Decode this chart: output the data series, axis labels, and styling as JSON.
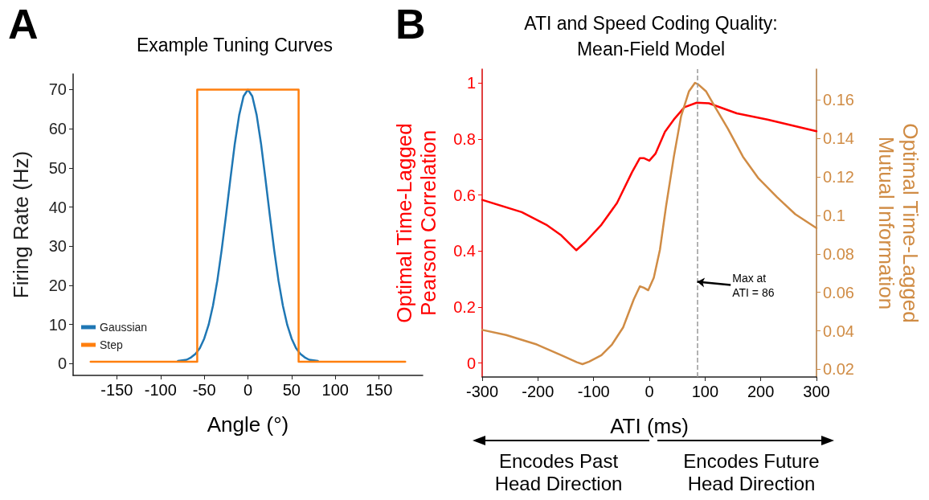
{
  "chart_data": [
    {
      "type": "line",
      "title": "Example Tuning Curves",
      "xlabel": "Angle (°)",
      "ylabel": "Firing Rate (Hz)",
      "xlim": [
        -200,
        200
      ],
      "xticks": [
        -150,
        -100,
        -50,
        0,
        50,
        100,
        150
      ],
      "ylim": [
        -3,
        74
      ],
      "yticks": [
        0,
        10,
        20,
        30,
        40,
        50,
        60,
        70
      ],
      "legend": "bottom left",
      "annotations": [
        "A"
      ],
      "series": [
        {
          "name": "Gaussian",
          "color": "#1f77b4",
          "x": [
            -80,
            -70,
            -65,
            -60,
            -55,
            -50,
            -45,
            -40,
            -35,
            -30,
            -25,
            -20,
            -15,
            -10,
            -5,
            0,
            5,
            10,
            15,
            20,
            25,
            30,
            35,
            40,
            45,
            50,
            55,
            60,
            65,
            70,
            80
          ],
          "values": [
            0.7,
            1,
            1.6,
            2.5,
            4.0,
            6.4,
            9.9,
            14.8,
            21.2,
            29.1,
            38,
            47.3,
            56.2,
            63.5,
            68.3,
            70,
            68.3,
            63.5,
            56.2,
            47.3,
            38,
            29.1,
            21.2,
            14.8,
            9.9,
            6.4,
            4.0,
            2.5,
            1.6,
            1,
            0.7
          ]
        },
        {
          "name": "Step",
          "color": "#ff7f0e",
          "x": [
            -180,
            -58,
            -58,
            58,
            58,
            180
          ],
          "values": [
            0.5,
            0.5,
            70,
            70,
            0.5,
            0.5
          ]
        }
      ]
    },
    {
      "type": "line",
      "title": "ATI and Speed Coding Quality:\nMean-Field Model",
      "xlabel": "ATI (ms)",
      "ylabel": "Optimal Time-Lagged\nPearson Correlation",
      "y2label": "Optimal Time-Lagged\nMutual Information",
      "xlim": [
        -300,
        300
      ],
      "xticks": [
        -300,
        -200,
        -100,
        0,
        100,
        200,
        300
      ],
      "ylim": [
        -0.05,
        1.05
      ],
      "yticks": [
        0,
        0.2,
        0.4,
        0.6,
        0.8,
        1
      ],
      "y2lim": [
        0.016,
        0.176
      ],
      "y2ticks": [
        0.02,
        0.04,
        0.06,
        0.08,
        0.1,
        0.12,
        0.14,
        0.16
      ],
      "ref_lines": [
        {
          "axis": "x",
          "value": 86,
          "color": "#999999",
          "line_style": "dashed"
        }
      ],
      "annotations": [
        "B",
        {
          "text": "Max at\nATI = 86",
          "x": 86,
          "y": 0.29
        },
        "Encodes Past\nHead Direction",
        "Encodes Future\nHead Direction"
      ],
      "series": [
        {
          "color": "#ff0000",
          "x": [
            -300,
            -229,
            -185,
            -158,
            -131,
            -114,
            -86,
            -58,
            -31,
            -17,
            -10,
            0,
            11,
            28,
            44,
            63,
            85,
            107,
            157,
            212,
            300
          ],
          "values": [
            0.583,
            0.539,
            0.494,
            0.456,
            0.403,
            0.434,
            0.494,
            0.572,
            0.682,
            0.732,
            0.732,
            0.723,
            0.748,
            0.826,
            0.87,
            0.914,
            0.93,
            0.928,
            0.892,
            0.87,
            0.828
          ]
        },
        {
          "color": "#d08c45",
          "axis": "y2",
          "x": [
            -300,
            -257,
            -202,
            -158,
            -130,
            -120,
            -108,
            -86,
            -67,
            -47,
            -28,
            -17,
            -10,
            -2,
            8,
            19,
            30,
            44,
            57,
            71,
            82,
            88,
            102,
            118,
            141,
            168,
            196,
            229,
            262,
            300
          ],
          "values": [
            0.0405,
            0.0378,
            0.0329,
            0.0273,
            0.0237,
            0.0227,
            0.024,
            0.0273,
            0.0329,
            0.0418,
            0.0563,
            0.0631,
            0.0624,
            0.0611,
            0.0676,
            0.0821,
            0.1047,
            0.1305,
            0.1515,
            0.1644,
            0.1689,
            0.168,
            0.1644,
            0.1563,
            0.145,
            0.1305,
            0.1192,
            0.1095,
            0.1006,
            0.0934
          ]
        }
      ]
    }
  ]
}
